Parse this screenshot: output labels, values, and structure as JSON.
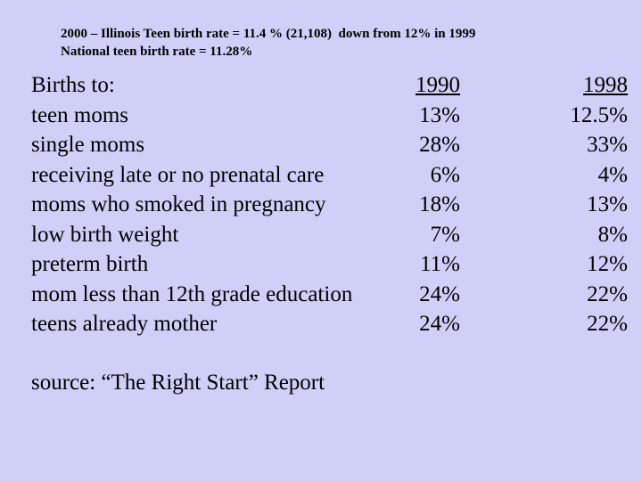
{
  "header": {
    "lines": [
      "2000 – Illinois Teen birth rate = 11.4 % (21,108)  down from 12% in 1999",
      "National teen birth rate = 11.28%"
    ]
  },
  "table": {
    "columns": [
      "Births to:",
      "1990",
      "1998"
    ],
    "rows": [
      [
        "teen moms",
        "13%",
        "12.5%"
      ],
      [
        "single moms",
        "28%",
        "33%"
      ],
      [
        "receiving late or no prenatal care",
        "6%",
        "4%"
      ],
      [
        "moms who smoked in pregnancy",
        "18%",
        "13%"
      ],
      [
        "low birth weight",
        "7%",
        "8%"
      ],
      [
        "preterm birth",
        "11%",
        "12%"
      ],
      [
        "mom less than 12th grade education",
        "24%",
        "22%"
      ],
      [
        "teens already mother",
        "24%",
        "22%"
      ]
    ]
  },
  "source": "source: “The Right Start” Report"
}
